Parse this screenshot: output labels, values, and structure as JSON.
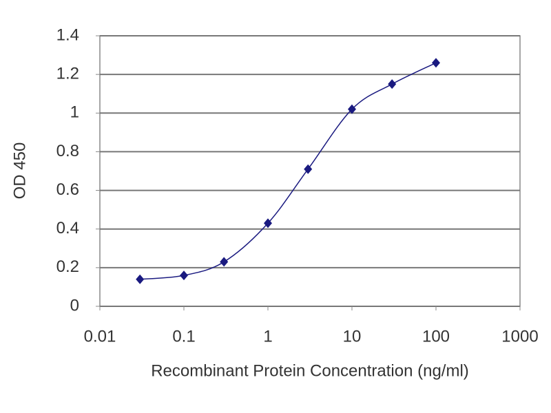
{
  "chart_data": {
    "type": "line",
    "x_label": "Recombinant Protein Concentration (ng/ml)",
    "y_label": "OD 450",
    "x": [
      0.03,
      0.1,
      0.3,
      1,
      3,
      10,
      30,
      100
    ],
    "values": [
      0.14,
      0.16,
      0.23,
      0.43,
      0.71,
      1.02,
      1.15,
      1.26
    ],
    "color": "#1a1a80",
    "xscale": "log",
    "xlim": [
      0.01,
      1000
    ],
    "xticks": [
      0.01,
      0.1,
      1,
      10,
      100,
      1000
    ],
    "ylim": [
      0,
      1.4
    ],
    "yticks": [
      0,
      0.2,
      0.4,
      0.6,
      0.8,
      1,
      1.2,
      1.4
    ],
    "grid": true
  }
}
